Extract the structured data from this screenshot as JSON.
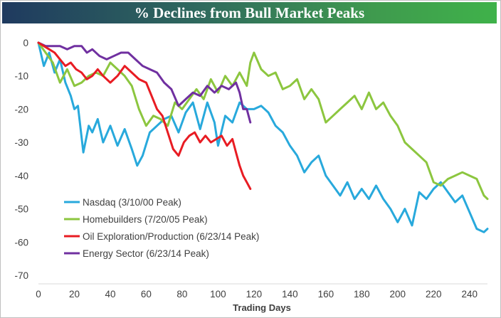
{
  "chart_data": {
    "type": "line",
    "title": "% Declines from Bull Market Peaks",
    "xlabel": "Trading Days",
    "ylabel": "",
    "xlim": [
      0,
      250
    ],
    "ylim": [
      -70,
      0
    ],
    "x_ticks": [
      0,
      20,
      40,
      60,
      80,
      100,
      120,
      140,
      160,
      180,
      200,
      220,
      240
    ],
    "y_ticks": [
      0,
      -10,
      -20,
      -30,
      -40,
      -50,
      -60,
      -70
    ],
    "grid": false,
    "legend_position": "bottom-left",
    "series": [
      {
        "name": "Nasdaq (3/10/00 Peak)",
        "color": "#28a9dc",
        "x": [
          0,
          3,
          6,
          9,
          12,
          15,
          18,
          20,
          22,
          25,
          28,
          30,
          33,
          36,
          40,
          44,
          48,
          52,
          55,
          58,
          62,
          66,
          70,
          74,
          78,
          82,
          86,
          90,
          94,
          98,
          100,
          104,
          108,
          112,
          116,
          120,
          124,
          128,
          132,
          136,
          140,
          144,
          148,
          152,
          156,
          160,
          164,
          168,
          172,
          176,
          180,
          184,
          188,
          192,
          196,
          200,
          204,
          208,
          212,
          216,
          220,
          224,
          228,
          232,
          236,
          240,
          244,
          248,
          250
        ],
        "values": [
          0,
          -7,
          -3,
          -9,
          -5,
          -12,
          -16,
          -20,
          -19,
          -33,
          -25,
          -27,
          -23,
          -30,
          -25,
          -31,
          -26,
          -32,
          -37,
          -34,
          -27,
          -25,
          -23,
          -22,
          -27,
          -21,
          -18,
          -26,
          -18,
          -24,
          -31,
          -22,
          -24,
          -18,
          -20,
          -20,
          -19,
          -21,
          -25,
          -27,
          -31,
          -34,
          -39,
          -36,
          -34,
          -40,
          -43,
          -46,
          -42,
          -47,
          -44,
          -47,
          -43,
          -47,
          -50,
          -54,
          -50,
          -55,
          -45,
          -47,
          -44,
          -42,
          -45,
          -48,
          -46,
          -51,
          -56,
          -57,
          -56
        ]
      },
      {
        "name": "Homebuilders (7/20/05 Peak)",
        "color": "#8cc63f",
        "x": [
          0,
          4,
          8,
          12,
          16,
          20,
          24,
          28,
          32,
          36,
          40,
          44,
          48,
          52,
          56,
          60,
          64,
          68,
          72,
          76,
          80,
          84,
          88,
          92,
          96,
          100,
          104,
          108,
          112,
          116,
          118,
          120,
          124,
          128,
          132,
          136,
          140,
          144,
          148,
          152,
          156,
          160,
          164,
          168,
          172,
          176,
          180,
          184,
          188,
          192,
          196,
          200,
          204,
          208,
          212,
          216,
          220,
          224,
          228,
          232,
          236,
          240,
          244,
          248,
          250
        ],
        "values": [
          0,
          -3,
          -6,
          -12,
          -8,
          -13,
          -12,
          -10,
          -9,
          -10,
          -6,
          -8,
          -10,
          -13,
          -20,
          -25,
          -22,
          -23,
          -25,
          -18,
          -20,
          -17,
          -14,
          -17,
          -11,
          -15,
          -10,
          -13,
          -9,
          -13,
          -6,
          -3,
          -8,
          -10,
          -9,
          -14,
          -13,
          -11,
          -17,
          -14,
          -17,
          -24,
          -22,
          -20,
          -18,
          -16,
          -20,
          -15,
          -20,
          -18,
          -22,
          -25,
          -30,
          -32,
          -34,
          -36,
          -42,
          -43,
          -41,
          -40,
          -39,
          -40,
          -41,
          -46,
          -47
        ]
      },
      {
        "name": "Oil Exploration/Production (6/23/14 Peak)",
        "color": "#e81c23",
        "x": [
          0,
          3,
          6,
          9,
          12,
          15,
          18,
          21,
          24,
          27,
          30,
          33,
          36,
          40,
          44,
          48,
          52,
          56,
          60,
          63,
          66,
          69,
          72,
          75,
          78,
          81,
          84,
          87,
          90,
          93,
          96,
          99,
          102,
          105,
          108,
          110,
          112,
          114,
          116,
          118
        ],
        "values": [
          0,
          -1,
          -2,
          -3,
          -5,
          -7,
          -6,
          -8,
          -9,
          -11,
          -10,
          -8,
          -10,
          -12,
          -10,
          -7,
          -9,
          -11,
          -12,
          -16,
          -20,
          -22,
          -27,
          -32,
          -34,
          -30,
          -28,
          -27,
          -30,
          -28,
          -30,
          -29,
          -28,
          -31,
          -29,
          -33,
          -37,
          -40,
          -42,
          -44
        ]
      },
      {
        "name": "Energy Sector (6/23/14 Peak)",
        "color": "#7030a0",
        "x": [
          0,
          4,
          8,
          12,
          16,
          20,
          24,
          27,
          30,
          34,
          38,
          42,
          46,
          50,
          54,
          58,
          62,
          66,
          70,
          74,
          78,
          82,
          86,
          90,
          94,
          98,
          102,
          106,
          110,
          112,
          114,
          116,
          118
        ],
        "values": [
          0,
          -1,
          -1,
          -1,
          -2,
          -1,
          -1,
          -3,
          -2,
          -4,
          -5,
          -4,
          -3,
          -3,
          -5,
          -7,
          -8,
          -9,
          -12,
          -14,
          -19,
          -17,
          -15,
          -16,
          -13,
          -15,
          -13,
          -14,
          -12,
          -15,
          -20,
          -20,
          -24
        ]
      }
    ]
  }
}
